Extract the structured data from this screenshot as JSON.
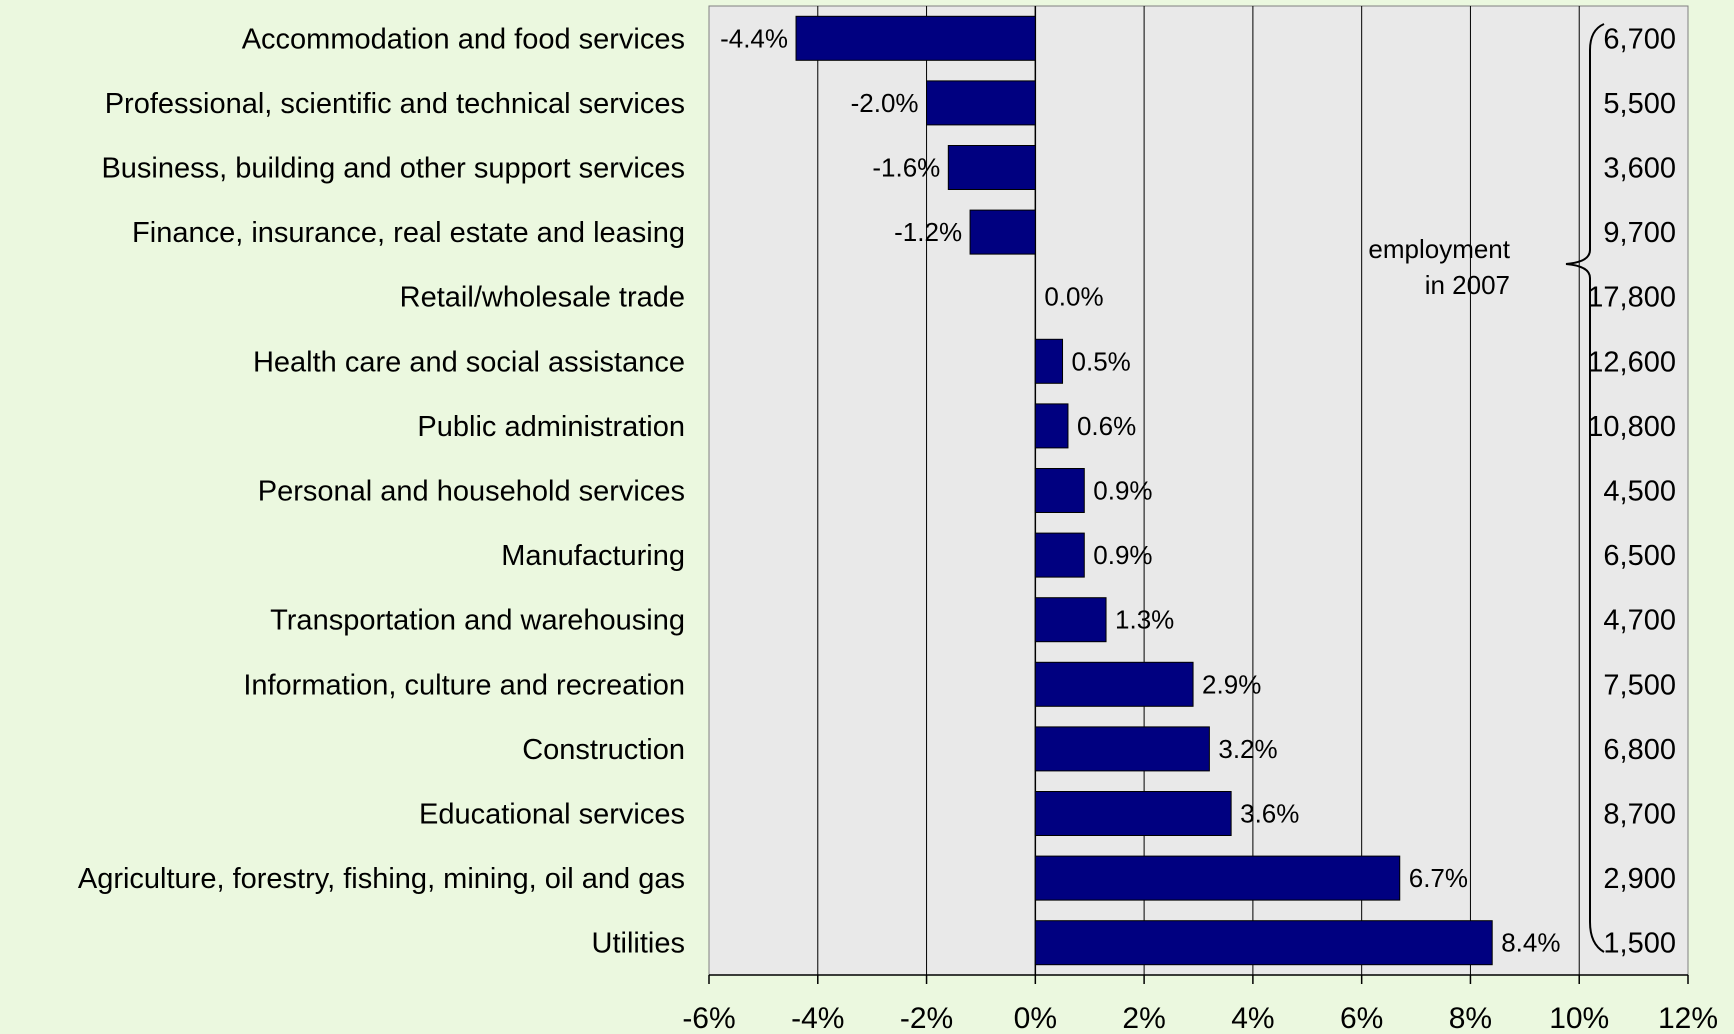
{
  "chart_data": {
    "type": "bar",
    "orientation": "horizontal",
    "categories": [
      "Accommodation and food services",
      "Professional, scientific and technical services",
      "Business, building and other support services",
      "Finance, insurance, real estate and leasing",
      "Retail/wholesale trade",
      "Health care and social assistance",
      "Public administration",
      "Personal and household services",
      "Manufacturing",
      "Transportation and warehousing",
      "Information, culture and recreation",
      "Construction",
      "Educational services",
      "Agriculture, forestry, fishing, mining, oil and gas",
      "Utilities"
    ],
    "values": [
      -4.4,
      -2.0,
      -1.6,
      -1.2,
      0.0,
      0.5,
      0.6,
      0.9,
      0.9,
      1.3,
      2.9,
      3.2,
      3.6,
      6.7,
      8.4
    ],
    "value_labels": [
      "-4.4%",
      "-2.0%",
      "-1.6%",
      "-1.2%",
      "0.0%",
      "0.5%",
      "0.6%",
      "0.9%",
      "0.9%",
      "1.3%",
      "2.9%",
      "3.2%",
      "3.6%",
      "6.7%",
      "8.4%"
    ],
    "employment_2007": [
      "6,700",
      "5,500",
      "3,600",
      "9,700",
      "17,800",
      "12,600",
      "10,800",
      "4,500",
      "6,500",
      "4,700",
      "7,500",
      "6,800",
      "8,700",
      "2,900",
      "1,500"
    ],
    "annotation": [
      "employment",
      "in 2007"
    ],
    "xlim": [
      -6,
      12
    ],
    "xticks": [
      -6,
      -4,
      -2,
      0,
      2,
      4,
      6,
      8,
      10,
      12
    ],
    "xtick_labels": [
      "-6%",
      "-4%",
      "-2%",
      "0%",
      "2%",
      "4%",
      "6%",
      "8%",
      "10%",
      "12%"
    ],
    "xlabel": "",
    "ylabel": "",
    "title": "",
    "grid": true,
    "colors": {
      "bar": "#000080",
      "plot_background": "#e9e9e9",
      "page_background": "#ebf8df",
      "grid": "#000000"
    }
  }
}
